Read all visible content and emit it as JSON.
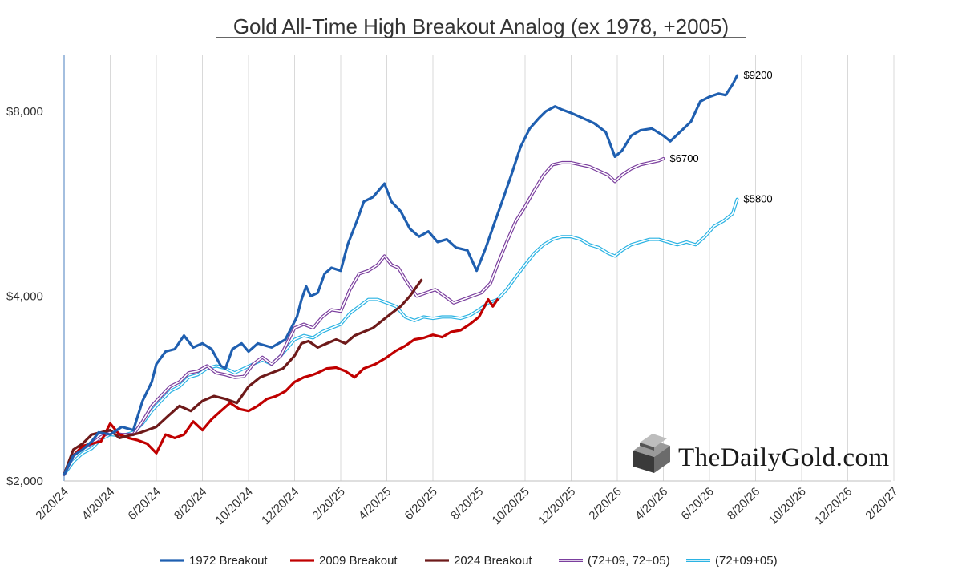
{
  "chart_data": {
    "type": "line",
    "title": "Gold All-Time High Breakout Analog (ex 1978, +2005)",
    "xlabel": "",
    "ylabel": "",
    "categories": [
      "2/20/24",
      "4/20/24",
      "6/20/24",
      "8/20/24",
      "10/20/24",
      "12/20/24",
      "2/20/25",
      "4/20/25",
      "6/20/25",
      "8/20/25",
      "10/20/25",
      "12/20/25",
      "2/20/26",
      "4/20/26",
      "6/20/26",
      "8/20/26",
      "10/20/26",
      "12/20/26",
      "2/20/27"
    ],
    "y_ticks": [
      {
        "value": 2000,
        "label": "$2,000"
      },
      {
        "value": 4000,
        "label": "$4,000"
      },
      {
        "value": 8000,
        "label": "$8,000"
      }
    ],
    "y_scale": "log",
    "ylim": [
      2000,
      9900
    ],
    "grid": "vertical",
    "legend": "bottom",
    "series": [
      {
        "name": "1972 Breakout",
        "color": "#1f5fb0",
        "style": "solid",
        "points": [
          [
            0,
            2050
          ],
          [
            0.4,
            2200
          ],
          [
            0.8,
            2250
          ],
          [
            1.2,
            2320
          ],
          [
            1.5,
            2400
          ],
          [
            2,
            2380
          ],
          [
            2.5,
            2450
          ],
          [
            3,
            2420
          ],
          [
            3.4,
            2700
          ],
          [
            3.8,
            2900
          ],
          [
            4,
            3100
          ],
          [
            4.4,
            3250
          ],
          [
            4.8,
            3280
          ],
          [
            5.2,
            3450
          ],
          [
            5.6,
            3300
          ],
          [
            6,
            3350
          ],
          [
            6.4,
            3280
          ],
          [
            6.8,
            3080
          ],
          [
            7,
            3050
          ],
          [
            7.3,
            3280
          ],
          [
            7.7,
            3350
          ],
          [
            8,
            3250
          ],
          [
            8.4,
            3350
          ],
          [
            9,
            3300
          ],
          [
            9.6,
            3400
          ],
          [
            10.1,
            3700
          ],
          [
            10.3,
            3950
          ],
          [
            10.5,
            4150
          ],
          [
            10.7,
            4000
          ],
          [
            11,
            4050
          ],
          [
            11.3,
            4350
          ],
          [
            11.6,
            4450
          ],
          [
            12,
            4400
          ],
          [
            12.3,
            4850
          ],
          [
            12.7,
            5300
          ],
          [
            13,
            5700
          ],
          [
            13.4,
            5800
          ],
          [
            13.9,
            6100
          ],
          [
            14.2,
            5700
          ],
          [
            14.6,
            5500
          ],
          [
            15,
            5150
          ],
          [
            15.4,
            5000
          ],
          [
            15.8,
            5100
          ],
          [
            16.2,
            4900
          ],
          [
            16.6,
            4950
          ],
          [
            17,
            4800
          ],
          [
            17.5,
            4750
          ],
          [
            17.9,
            4400
          ],
          [
            18.3,
            4800
          ],
          [
            18.7,
            5300
          ],
          [
            19,
            5700
          ],
          [
            19.4,
            6300
          ],
          [
            19.8,
            7000
          ],
          [
            20.2,
            7500
          ],
          [
            20.6,
            7800
          ],
          [
            20.9,
            8000
          ],
          [
            21.3,
            8150
          ],
          [
            21.6,
            8050
          ],
          [
            22,
            7950
          ],
          [
            22.5,
            7800
          ],
          [
            23,
            7650
          ],
          [
            23.5,
            7400
          ],
          [
            23.9,
            6750
          ],
          [
            24.2,
            6900
          ],
          [
            24.6,
            7300
          ],
          [
            25,
            7450
          ],
          [
            25.5,
            7500
          ],
          [
            26,
            7300
          ],
          [
            26.3,
            7150
          ],
          [
            26.8,
            7450
          ],
          [
            27.2,
            7700
          ],
          [
            27.6,
            8300
          ],
          [
            28,
            8450
          ],
          [
            28.4,
            8550
          ],
          [
            28.7,
            8500
          ],
          [
            29,
            8850
          ],
          [
            29.2,
            9150
          ]
        ]
      },
      {
        "name": "2009 Breakout",
        "color": "#c00000",
        "style": "solid",
        "points": [
          [
            0,
            2050
          ],
          [
            0.3,
            2180
          ],
          [
            0.8,
            2280
          ],
          [
            1.2,
            2300
          ],
          [
            1.6,
            2320
          ],
          [
            2,
            2480
          ],
          [
            2.4,
            2380
          ],
          [
            2.8,
            2350
          ],
          [
            3.2,
            2330
          ],
          [
            3.6,
            2300
          ],
          [
            4,
            2220
          ],
          [
            4.4,
            2380
          ],
          [
            4.8,
            2350
          ],
          [
            5.2,
            2380
          ],
          [
            5.6,
            2500
          ],
          [
            6,
            2420
          ],
          [
            6.4,
            2520
          ],
          [
            6.8,
            2600
          ],
          [
            7.2,
            2680
          ],
          [
            7.6,
            2620
          ],
          [
            8,
            2600
          ],
          [
            8.4,
            2650
          ],
          [
            8.8,
            2720
          ],
          [
            9.2,
            2750
          ],
          [
            9.6,
            2800
          ],
          [
            10,
            2900
          ],
          [
            10.4,
            2950
          ],
          [
            10.8,
            2980
          ],
          [
            11,
            3000
          ],
          [
            11.4,
            3050
          ],
          [
            11.8,
            3060
          ],
          [
            12.2,
            3020
          ],
          [
            12.6,
            2950
          ],
          [
            13,
            3050
          ],
          [
            13.5,
            3100
          ],
          [
            14,
            3180
          ],
          [
            14.4,
            3260
          ],
          [
            14.8,
            3320
          ],
          [
            15.2,
            3400
          ],
          [
            15.6,
            3420
          ],
          [
            16,
            3460
          ],
          [
            16.4,
            3430
          ],
          [
            16.8,
            3500
          ],
          [
            17.2,
            3520
          ],
          [
            17.6,
            3600
          ],
          [
            18,
            3700
          ],
          [
            18.4,
            3950
          ],
          [
            18.6,
            3850
          ],
          [
            18.8,
            3950
          ]
        ]
      },
      {
        "name": "2024 Breakout",
        "color": "#6e1a1a",
        "style": "solid",
        "points": [
          [
            0,
            2050
          ],
          [
            0.4,
            2250
          ],
          [
            0.8,
            2300
          ],
          [
            1.2,
            2380
          ],
          [
            1.6,
            2400
          ],
          [
            2,
            2420
          ],
          [
            2.4,
            2350
          ],
          [
            2.8,
            2370
          ],
          [
            3.2,
            2390
          ],
          [
            3.6,
            2420
          ],
          [
            4,
            2450
          ],
          [
            4.5,
            2550
          ],
          [
            5,
            2650
          ],
          [
            5.5,
            2600
          ],
          [
            6,
            2700
          ],
          [
            6.5,
            2750
          ],
          [
            7,
            2720
          ],
          [
            7.5,
            2680
          ],
          [
            8,
            2850
          ],
          [
            8.5,
            2950
          ],
          [
            9,
            3000
          ],
          [
            9.5,
            3050
          ],
          [
            10,
            3200
          ],
          [
            10.3,
            3350
          ],
          [
            10.6,
            3380
          ],
          [
            11,
            3300
          ],
          [
            11.4,
            3350
          ],
          [
            11.8,
            3400
          ],
          [
            12.2,
            3350
          ],
          [
            12.6,
            3450
          ],
          [
            13,
            3500
          ],
          [
            13.4,
            3550
          ],
          [
            13.8,
            3650
          ],
          [
            14.2,
            3750
          ],
          [
            14.6,
            3850
          ],
          [
            15,
            4000
          ],
          [
            15.3,
            4150
          ],
          [
            15.5,
            4250
          ]
        ]
      },
      {
        "name": "(72+09, 72+05)",
        "color": "#7b3f9e",
        "style": "double",
        "points": [
          [
            0,
            2050
          ],
          [
            0.4,
            2200
          ],
          [
            0.8,
            2260
          ],
          [
            1.2,
            2300
          ],
          [
            1.6,
            2360
          ],
          [
            2,
            2400
          ],
          [
            2.5,
            2380
          ],
          [
            3,
            2380
          ],
          [
            3.4,
            2500
          ],
          [
            3.8,
            2650
          ],
          [
            4.2,
            2750
          ],
          [
            4.6,
            2850
          ],
          [
            5,
            2900
          ],
          [
            5.4,
            3000
          ],
          [
            5.8,
            3020
          ],
          [
            6.2,
            3080
          ],
          [
            6.6,
            3000
          ],
          [
            7,
            2980
          ],
          [
            7.4,
            2950
          ],
          [
            7.8,
            2960
          ],
          [
            8.2,
            3100
          ],
          [
            8.6,
            3180
          ],
          [
            9,
            3100
          ],
          [
            9.4,
            3200
          ],
          [
            10,
            3550
          ],
          [
            10.4,
            3600
          ],
          [
            10.8,
            3550
          ],
          [
            11.2,
            3700
          ],
          [
            11.6,
            3800
          ],
          [
            12,
            3780
          ],
          [
            12.4,
            4100
          ],
          [
            12.8,
            4350
          ],
          [
            13.2,
            4400
          ],
          [
            13.6,
            4500
          ],
          [
            13.9,
            4650
          ],
          [
            14.2,
            4500
          ],
          [
            14.5,
            4450
          ],
          [
            14.9,
            4200
          ],
          [
            15.3,
            4000
          ],
          [
            15.7,
            4050
          ],
          [
            16.1,
            4100
          ],
          [
            16.5,
            4000
          ],
          [
            16.9,
            3900
          ],
          [
            17.3,
            3950
          ],
          [
            17.7,
            4000
          ],
          [
            18.1,
            4050
          ],
          [
            18.5,
            4200
          ],
          [
            18.8,
            4500
          ],
          [
            19.2,
            4900
          ],
          [
            19.6,
            5300
          ],
          [
            20,
            5600
          ],
          [
            20.4,
            5950
          ],
          [
            20.8,
            6300
          ],
          [
            21.2,
            6550
          ],
          [
            21.6,
            6600
          ],
          [
            22,
            6600
          ],
          [
            22.4,
            6550
          ],
          [
            22.8,
            6500
          ],
          [
            23.2,
            6400
          ],
          [
            23.6,
            6300
          ],
          [
            23.9,
            6150
          ],
          [
            24.2,
            6300
          ],
          [
            24.6,
            6450
          ],
          [
            25,
            6550
          ],
          [
            25.4,
            6600
          ],
          [
            25.8,
            6650
          ],
          [
            26,
            6700
          ]
        ]
      },
      {
        "name": "(72+09+05)",
        "color": "#2bb3e3",
        "style": "double",
        "points": [
          [
            0,
            2050
          ],
          [
            0.4,
            2150
          ],
          [
            0.8,
            2220
          ],
          [
            1.2,
            2260
          ],
          [
            1.6,
            2340
          ],
          [
            2,
            2380
          ],
          [
            2.5,
            2370
          ],
          [
            3,
            2400
          ],
          [
            3.4,
            2480
          ],
          [
            3.8,
            2600
          ],
          [
            4.2,
            2700
          ],
          [
            4.6,
            2800
          ],
          [
            5,
            2850
          ],
          [
            5.4,
            2950
          ],
          [
            5.8,
            2980
          ],
          [
            6.2,
            3050
          ],
          [
            6.6,
            3080
          ],
          [
            7,
            3050
          ],
          [
            7.4,
            3000
          ],
          [
            7.8,
            3050
          ],
          [
            8.2,
            3100
          ],
          [
            8.6,
            3150
          ],
          [
            9,
            3100
          ],
          [
            9.4,
            3200
          ],
          [
            10,
            3400
          ],
          [
            10.4,
            3450
          ],
          [
            10.8,
            3420
          ],
          [
            11.2,
            3500
          ],
          [
            11.6,
            3550
          ],
          [
            12,
            3600
          ],
          [
            12.4,
            3750
          ],
          [
            12.8,
            3850
          ],
          [
            13.2,
            3950
          ],
          [
            13.6,
            3950
          ],
          [
            14,
            3900
          ],
          [
            14.4,
            3850
          ],
          [
            14.8,
            3700
          ],
          [
            15.2,
            3650
          ],
          [
            15.6,
            3700
          ],
          [
            16,
            3680
          ],
          [
            16.4,
            3700
          ],
          [
            16.8,
            3700
          ],
          [
            17.2,
            3680
          ],
          [
            17.6,
            3720
          ],
          [
            18,
            3800
          ],
          [
            18.4,
            3900
          ],
          [
            18.8,
            3950
          ],
          [
            19.2,
            4100
          ],
          [
            19.6,
            4300
          ],
          [
            20,
            4500
          ],
          [
            20.4,
            4700
          ],
          [
            20.8,
            4850
          ],
          [
            21.2,
            4950
          ],
          [
            21.6,
            5000
          ],
          [
            22,
            5000
          ],
          [
            22.4,
            4950
          ],
          [
            22.8,
            4850
          ],
          [
            23.2,
            4800
          ],
          [
            23.6,
            4700
          ],
          [
            23.9,
            4650
          ],
          [
            24.2,
            4750
          ],
          [
            24.6,
            4850
          ],
          [
            25,
            4900
          ],
          [
            25.4,
            4950
          ],
          [
            25.8,
            4950
          ],
          [
            26.2,
            4900
          ],
          [
            26.6,
            4850
          ],
          [
            27,
            4900
          ],
          [
            27.4,
            4850
          ],
          [
            27.8,
            5000
          ],
          [
            28.2,
            5200
          ],
          [
            28.6,
            5300
          ],
          [
            29,
            5450
          ],
          [
            29.2,
            5750
          ]
        ]
      }
    ],
    "end_labels": [
      {
        "series": "1972 Breakout",
        "text": "$9200"
      },
      {
        "series": "(72+09, 72+05)",
        "text": "$6700"
      },
      {
        "series": "(72+09+05)",
        "text": "$5800"
      }
    ]
  },
  "watermark": {
    "text": "TheDailyGold.com",
    "logo": "gold-bar-logo"
  }
}
